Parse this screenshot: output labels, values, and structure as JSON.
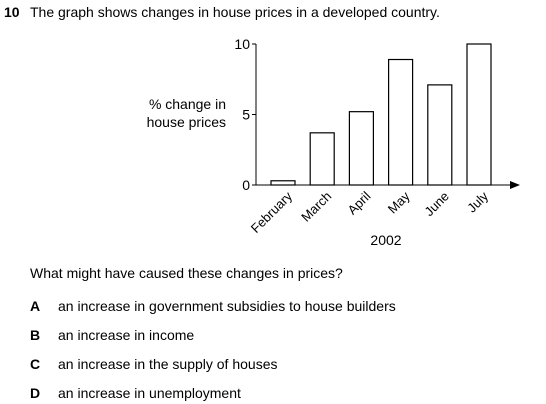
{
  "question": {
    "number": "10",
    "stem": "The graph shows changes in house prices in a developed country.",
    "prompt": "What might have caused these changes in prices?",
    "options": [
      {
        "letter": "A",
        "text": "an increase in government subsidies to house builders"
      },
      {
        "letter": "B",
        "text": "an increase in income"
      },
      {
        "letter": "C",
        "text": "an increase in the supply of houses"
      },
      {
        "letter": "D",
        "text": "an increase in unemployment"
      }
    ]
  },
  "chart_data": {
    "type": "bar",
    "categories": [
      "February",
      "March",
      "April",
      "May",
      "June",
      "July"
    ],
    "values": [
      0.3,
      3.7,
      5.2,
      8.9,
      7.1,
      10
    ],
    "ylabel": "% change in house prices",
    "ylabel_lines": [
      "% change in",
      "house prices"
    ],
    "xlabel": "2002",
    "ylim": [
      0,
      10
    ],
    "yticks": [
      "0",
      "5",
      "10"
    ],
    "grid": false,
    "bar_fill": "#ffffff",
    "bar_stroke": "#000000"
  }
}
